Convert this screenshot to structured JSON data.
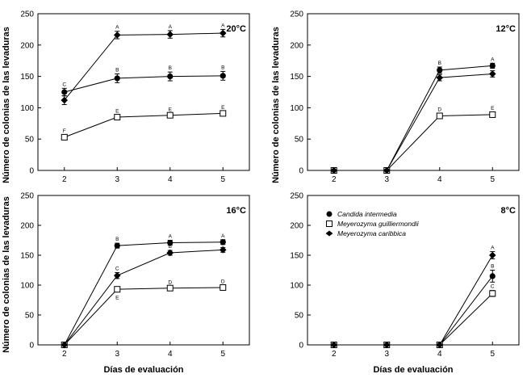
{
  "figure": {
    "ylabel": "Número de colonias de las levaduras",
    "xlabel": "Días de evaluación"
  },
  "legend": [
    {
      "name": "Candida intermedia",
      "marker": "filled-circle"
    },
    {
      "name": "Meyerozyma guilliermondii",
      "marker": "open-square"
    },
    {
      "name": "Meyerozyma caribbica",
      "marker": "filled-diamond"
    }
  ],
  "chart_data": [
    {
      "type": "line",
      "panel": "top-left",
      "annotation": "20°C",
      "x": [
        2,
        3,
        4,
        5
      ],
      "xlim": [
        1.5,
        5.5
      ],
      "ylim": [
        0,
        250
      ],
      "yticks": [
        0,
        50,
        100,
        150,
        200,
        250
      ],
      "series": [
        {
          "name": "Candida intermedia",
          "values": [
            125,
            147,
            150,
            151
          ],
          "errors": [
            6,
            7,
            7,
            7
          ],
          "labels": [
            "C",
            "B",
            "B",
            "B"
          ]
        },
        {
          "name": "Meyerozyma guilliermondii",
          "values": [
            53,
            85,
            88,
            91
          ],
          "errors": [
            4,
            3,
            3,
            3
          ],
          "labels": [
            "F",
            "E",
            "E",
            "E"
          ]
        },
        {
          "name": "Meyerozyma caribbica",
          "values": [
            112,
            216,
            217,
            219
          ],
          "errors": [
            7,
            6,
            6,
            6
          ],
          "labels": [
            "C",
            "A",
            "A",
            "A"
          ]
        }
      ]
    },
    {
      "type": "line",
      "panel": "top-right",
      "annotation": "12°C",
      "x": [
        2,
        3,
        4,
        5
      ],
      "xlim": [
        1.5,
        5.5
      ],
      "ylim": [
        0,
        250
      ],
      "yticks": [
        0,
        50,
        100,
        150,
        200,
        250
      ],
      "series": [
        {
          "name": "Candida intermedia",
          "values": [
            0,
            0,
            160,
            167
          ],
          "errors": [
            0,
            0,
            5,
            4
          ],
          "labels": [
            "",
            "",
            "B",
            "A"
          ]
        },
        {
          "name": "Meyerozyma guilliermondii",
          "values": [
            0,
            0,
            87,
            89
          ],
          "errors": [
            0,
            0,
            4,
            4
          ],
          "labels": [
            "",
            "",
            "D",
            "E"
          ]
        },
        {
          "name": "Meyerozyma caribbica",
          "values": [
            0,
            0,
            148,
            154
          ],
          "errors": [
            0,
            0,
            5,
            5
          ],
          "labels": [
            "",
            "",
            "C",
            "B"
          ]
        }
      ]
    },
    {
      "type": "line",
      "panel": "bottom-left",
      "annotation": "16°C",
      "x": [
        2,
        3,
        4,
        5
      ],
      "xlim": [
        1.5,
        5.5
      ],
      "ylim": [
        0,
        250
      ],
      "yticks": [
        0,
        50,
        100,
        150,
        200,
        250
      ],
      "series": [
        {
          "name": "Candida intermedia",
          "values": [
            0,
            166,
            171,
            172
          ],
          "errors": [
            0,
            4,
            4,
            4
          ],
          "labels": [
            "",
            "B",
            "A",
            "A"
          ]
        },
        {
          "name": "Meyerozyma guilliermondii",
          "values": [
            0,
            93,
            95,
            96
          ],
          "errors": [
            0,
            3,
            3,
            3
          ],
          "labels": [
            "",
            "E",
            "D",
            "D"
          ]
        },
        {
          "name": "Meyerozyma caribbica",
          "values": [
            0,
            116,
            154,
            159
          ],
          "errors": [
            0,
            5,
            4,
            4
          ],
          "labels": [
            "",
            "C",
            "B",
            "B"
          ]
        }
      ]
    },
    {
      "type": "line",
      "panel": "bottom-right",
      "annotation": "8°C",
      "x": [
        2,
        3,
        4,
        5
      ],
      "xlim": [
        1.5,
        5.5
      ],
      "ylim": [
        0,
        250
      ],
      "yticks": [
        0,
        50,
        100,
        150,
        200,
        250
      ],
      "series": [
        {
          "name": "Candida intermedia",
          "values": [
            0,
            0,
            0,
            115
          ],
          "errors": [
            0,
            0,
            0,
            10
          ],
          "labels": [
            "",
            "",
            "",
            "B"
          ]
        },
        {
          "name": "Meyerozyma guilliermondii",
          "values": [
            0,
            0,
            0,
            86
          ],
          "errors": [
            0,
            0,
            0,
            5
          ],
          "labels": [
            "",
            "",
            "",
            "C"
          ]
        },
        {
          "name": "Meyerozyma caribbica",
          "values": [
            0,
            0,
            0,
            150
          ],
          "errors": [
            0,
            0,
            0,
            6
          ],
          "labels": [
            "",
            "",
            "",
            "A"
          ]
        }
      ]
    }
  ]
}
